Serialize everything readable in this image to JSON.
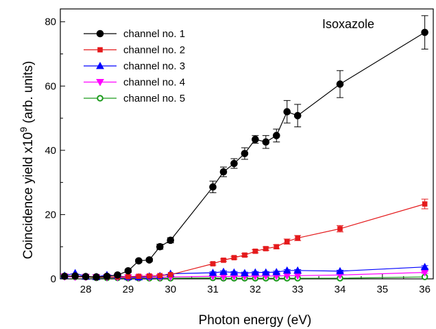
{
  "chart_data": {
    "type": "line",
    "annotation": "Isoxazole",
    "xlabel": "Photon energy (eV)",
    "ylabel_main": "Coincidence yield x10",
    "ylabel_sup": "9",
    "ylabel_unit": " (arb. units)",
    "xlim": [
      27.4,
      36.2
    ],
    "ylim": [
      0,
      84
    ],
    "x_major_ticks": [
      28,
      29,
      30,
      31,
      32,
      33,
      34,
      35,
      36
    ],
    "x_minor_ticks": [
      28.5,
      29.5,
      30.5,
      31.5,
      32.5,
      33.5,
      34.5,
      35.5
    ],
    "y_major_ticks": [
      0,
      20,
      40,
      60,
      80
    ],
    "y_minor_ticks": [
      10,
      30,
      50,
      70
    ],
    "grid": false,
    "legend_position": "top-left",
    "series": [
      {
        "name": "channel no. 1",
        "color": "#000000",
        "marker": "circle",
        "x": [
          27.5,
          27.75,
          28.0,
          28.25,
          28.5,
          28.75,
          29.0,
          29.25,
          29.5,
          29.75,
          30.0,
          31.0,
          31.25,
          31.5,
          31.75,
          32.0,
          32.25,
          32.5,
          32.75,
          33.0,
          34.0,
          36.0
        ],
        "y": [
          0.8,
          0.9,
          0.7,
          0.6,
          0.8,
          1.2,
          2.5,
          5.6,
          5.9,
          10.0,
          12.0,
          28.6,
          33.3,
          35.9,
          39.0,
          43.4,
          42.6,
          44.6,
          52.0,
          50.8,
          60.6,
          76.7
        ],
        "err": [
          0,
          0,
          0,
          0,
          0,
          0,
          0.5,
          0.5,
          0.5,
          0.8,
          0.8,
          1.8,
          1.5,
          1.5,
          1.8,
          1.2,
          2.0,
          2.0,
          3.5,
          3.5,
          4.2,
          5.2
        ]
      },
      {
        "name": "channel no. 2",
        "color": "#e41a1c",
        "marker": "square",
        "x": [
          27.5,
          27.75,
          28.0,
          28.25,
          28.5,
          28.75,
          29.0,
          29.25,
          29.5,
          29.75,
          30.0,
          31.0,
          31.25,
          31.5,
          31.75,
          32.0,
          32.25,
          32.5,
          32.75,
          33.0,
          34.0,
          36.0
        ],
        "y": [
          0.9,
          0.8,
          0.6,
          0.5,
          0.6,
          0.6,
          0.7,
          0.8,
          0.9,
          1.0,
          1.3,
          4.7,
          5.8,
          6.6,
          7.4,
          8.6,
          9.4,
          10.0,
          11.6,
          12.7,
          15.6,
          23.3
        ],
        "err": [
          0,
          0,
          0,
          0,
          0,
          0,
          0,
          0,
          0,
          0,
          0,
          0.4,
          0.4,
          0.4,
          0.5,
          0.5,
          0.5,
          0.6,
          0.8,
          0.8,
          1.0,
          1.5
        ]
      },
      {
        "name": "channel no. 3",
        "color": "#0000ff",
        "marker": "triangle-up",
        "x": [
          27.5,
          27.75,
          28.0,
          28.25,
          28.5,
          28.75,
          29.0,
          29.25,
          29.5,
          29.75,
          30.0,
          31.0,
          31.25,
          31.5,
          31.75,
          32.0,
          32.25,
          32.5,
          32.75,
          33.0,
          34.0,
          36.0
        ],
        "y": [
          1.0,
          1.8,
          0.7,
          0.6,
          1.2,
          0.9,
          0.6,
          0.5,
          0.8,
          0.9,
          1.6,
          1.9,
          2.2,
          2.0,
          1.8,
          2.0,
          2.0,
          2.1,
          2.6,
          2.6,
          2.4,
          3.7
        ],
        "err": [
          0,
          0,
          0,
          0,
          0,
          0,
          0,
          0,
          0,
          0,
          0,
          0.3,
          0.3,
          0.3,
          0.3,
          0.3,
          0.3,
          0.3,
          0.3,
          0.3,
          0.3,
          0.4
        ]
      },
      {
        "name": "channel no. 4",
        "color": "#ff00ff",
        "marker": "triangle-down",
        "x": [
          27.5,
          27.75,
          28.0,
          28.25,
          28.5,
          28.75,
          29.0,
          29.25,
          29.5,
          29.75,
          30.0,
          31.0,
          31.25,
          31.5,
          31.75,
          32.0,
          32.25,
          32.5,
          32.75,
          33.0,
          34.0,
          36.0
        ],
        "y": [
          0.7,
          0.6,
          0.6,
          0.5,
          0.5,
          0.5,
          0.4,
          0.4,
          0.5,
          0.5,
          0.6,
          0.8,
          0.7,
          0.8,
          0.8,
          0.8,
          0.9,
          0.9,
          1.0,
          1.0,
          1.2,
          2.0
        ],
        "err": [
          0,
          0,
          0,
          0,
          0,
          0,
          0,
          0,
          0,
          0,
          0,
          0,
          0,
          0,
          0,
          0,
          0,
          0,
          0,
          0,
          0,
          0.3
        ]
      },
      {
        "name": "channel no. 5",
        "color": "#1a9a1a",
        "marker": "circle-open",
        "x": [
          27.5,
          27.75,
          28.0,
          28.25,
          28.5,
          28.75,
          29.0,
          29.25,
          29.5,
          29.75,
          30.0,
          31.0,
          31.25,
          31.5,
          31.75,
          32.0,
          32.25,
          32.5,
          32.75,
          33.0,
          34.0,
          36.0
        ],
        "y": [
          0.9,
          0.6,
          0.6,
          0.3,
          0.3,
          0.3,
          0.2,
          0.2,
          0.2,
          0.2,
          0.2,
          0.3,
          0.2,
          0.2,
          0.2,
          0.2,
          0.2,
          0.2,
          0.2,
          0.2,
          0.2,
          0.6
        ],
        "err": [
          0,
          0,
          0,
          0,
          0,
          0,
          0,
          0,
          0,
          0,
          0,
          0,
          0,
          0,
          0,
          0,
          0,
          0,
          0,
          0,
          0,
          0
        ]
      }
    ]
  }
}
